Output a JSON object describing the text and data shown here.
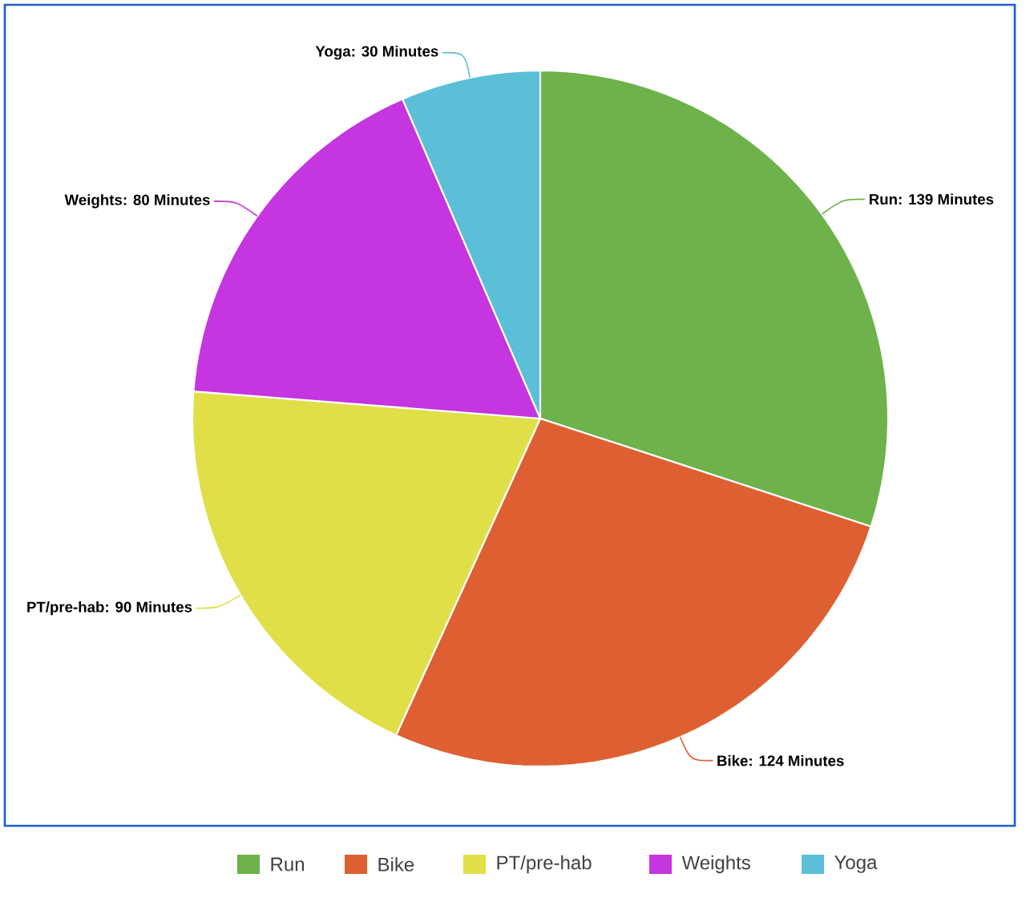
{
  "chart_data": {
    "type": "pie",
    "categories": [
      "Run",
      "Bike",
      "PT/pre-hab",
      "Weights",
      "Yoga"
    ],
    "values": [
      139,
      124,
      90,
      80,
      30
    ],
    "colors": [
      "#6db24a",
      "#de6032",
      "#e0df48",
      "#c535e0",
      "#5bbfd8"
    ],
    "value_labels": [
      "Run: 139 Minutes",
      "Bike: 124 Minutes",
      "PT/pre-hab: 90 Minutes",
      "Weights: 80 Minutes",
      "Yoga: 30 Minutes"
    ],
    "legend": "bottom"
  }
}
